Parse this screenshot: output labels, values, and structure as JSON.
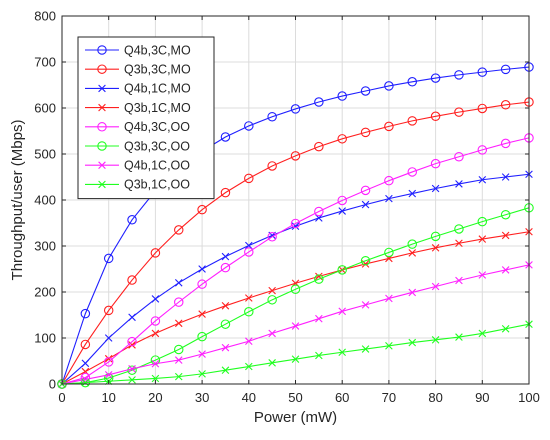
{
  "chart_data": {
    "type": "line",
    "title": "",
    "xlabel": "Power (mW)",
    "ylabel": "Throughput/user (Mbps)",
    "xlim": [
      0,
      100
    ],
    "ylim": [
      0,
      800
    ],
    "xticks": [
      "0",
      "10",
      "20",
      "30",
      "40",
      "50",
      "60",
      "70",
      "80",
      "90",
      "100"
    ],
    "yticks": [
      "0",
      "100",
      "200",
      "300",
      "400",
      "500",
      "600",
      "700",
      "800"
    ],
    "grid": true,
    "legend_position": "top-left",
    "x": [
      0,
      5,
      10,
      15,
      20,
      25,
      30,
      35,
      40,
      45,
      50,
      55,
      60,
      65,
      70,
      75,
      80,
      85,
      90,
      95,
      100
    ],
    "series": [
      {
        "name": "Q4b,3C,MO",
        "color": "#2020ff",
        "marker": "circle",
        "values": [
          0,
          153,
          273,
          357,
          420,
          467,
          506,
          537,
          561,
          581,
          598,
          613,
          626,
          637,
          648,
          657,
          665,
          672,
          678,
          684,
          689
        ]
      },
      {
        "name": "Q3b,3C,MO",
        "color": "#ff2020",
        "marker": "circle",
        "values": [
          0,
          86,
          160,
          226,
          285,
          335,
          379,
          416,
          447,
          474,
          496,
          516,
          533,
          547,
          560,
          572,
          582,
          591,
          599,
          607,
          613
        ]
      },
      {
        "name": "Q4b,1C,MO",
        "color": "#2020ff",
        "marker": "x",
        "values": [
          0,
          45,
          100,
          145,
          185,
          220,
          250,
          277,
          301,
          323,
          343,
          361,
          376,
          390,
          403,
          414,
          425,
          435,
          444,
          450,
          456
        ]
      },
      {
        "name": "Q3b,1C,MO",
        "color": "#ff2020",
        "marker": "x",
        "values": [
          0,
          27,
          55,
          85,
          110,
          132,
          152,
          170,
          187,
          203,
          219,
          234,
          248,
          261,
          273,
          285,
          296,
          306,
          315,
          323,
          331
        ]
      },
      {
        "name": "Q4b,3C,OO",
        "color": "#ff20ff",
        "marker": "circle",
        "values": [
          0,
          14,
          48,
          92,
          137,
          178,
          217,
          253,
          287,
          320,
          349,
          375,
          399,
          421,
          442,
          461,
          479,
          494,
          509,
          523,
          535
        ]
      },
      {
        "name": "Q3b,3C,OO",
        "color": "#20ff20",
        "marker": "circle",
        "values": [
          0,
          3,
          13,
          30,
          52,
          75,
          103,
          130,
          157,
          183,
          206,
          228,
          248,
          268,
          286,
          304,
          321,
          337,
          353,
          368,
          383
        ]
      },
      {
        "name": "Q4b,1C,OO",
        "color": "#ff20ff",
        "marker": "x",
        "values": [
          0,
          10,
          20,
          33,
          44,
          52,
          65,
          79,
          93,
          110,
          126,
          142,
          158,
          172,
          186,
          199,
          212,
          225,
          237,
          248,
          259
        ]
      },
      {
        "name": "Q3b,1C,OO",
        "color": "#20ff20",
        "marker": "x",
        "values": [
          0,
          3,
          6,
          9,
          12,
          16,
          22,
          30,
          38,
          46,
          54,
          62,
          69,
          76,
          83,
          90,
          96,
          102,
          110,
          120,
          130
        ]
      }
    ]
  }
}
